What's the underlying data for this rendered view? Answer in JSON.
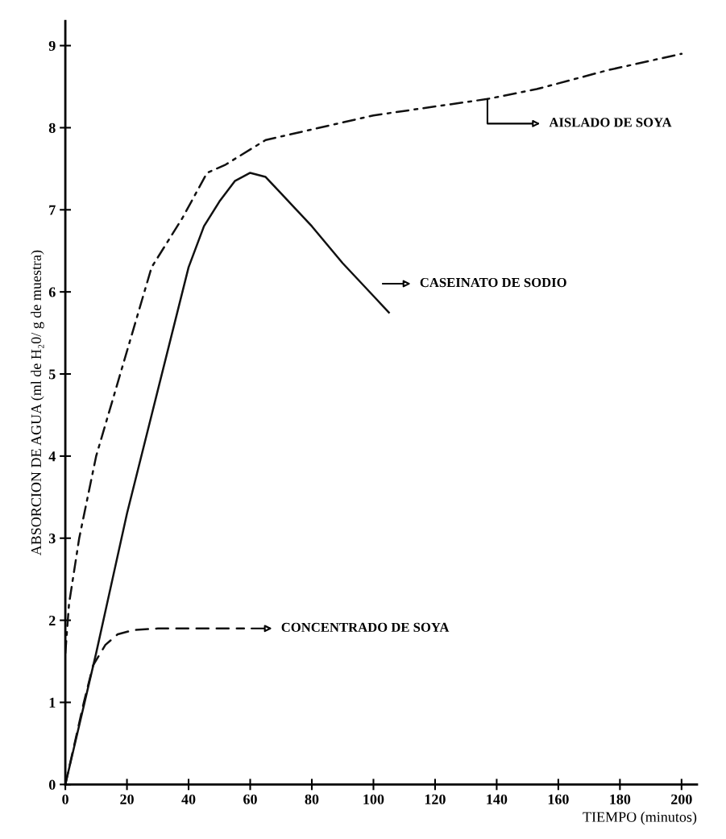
{
  "chart_data": {
    "type": "line",
    "xlabel": "TIEMPO (minutos)",
    "ylabel": "ABSORCION DE AGUA (ml de H₂0/ g de muestra)",
    "xlim": [
      0,
      205
    ],
    "ylim": [
      0,
      9.3
    ],
    "xticks": [
      0,
      20,
      40,
      60,
      80,
      100,
      120,
      140,
      160,
      180,
      200
    ],
    "yticks": [
      0,
      1,
      2,
      3,
      4,
      5,
      6,
      7,
      8,
      9
    ],
    "grid": false,
    "legend": false,
    "marker": "none",
    "series": [
      {
        "name": "AISLADO DE SOYA",
        "color": "#111111",
        "line_style": "dashdot",
        "x": [
          0,
          1.2,
          4.5,
          10,
          28,
          38,
          46,
          52,
          65,
          100,
          137,
          153,
          176,
          200
        ],
        "values": [
          1.6,
          2.2,
          3.0,
          4.0,
          6.3,
          6.9,
          7.45,
          7.55,
          7.85,
          8.15,
          8.35,
          8.47,
          8.7,
          8.9
        ]
      },
      {
        "name": "CASEINATO DE SODIO",
        "color": "#111111",
        "line_style": "solid",
        "x": [
          0,
          10,
          20,
          30,
          40,
          45,
          50,
          55,
          60,
          65,
          70,
          80,
          90,
          100,
          105
        ],
        "values": [
          0,
          1.6,
          3.3,
          4.8,
          6.3,
          6.8,
          7.1,
          7.35,
          7.45,
          7.4,
          7.2,
          6.8,
          6.35,
          5.95,
          5.75
        ]
      },
      {
        "name": "CONCENTRADO DE SOYA",
        "color": "#111111",
        "line_style": "dashed",
        "x": [
          0,
          3,
          6,
          9,
          13,
          17,
          22,
          30,
          58
        ],
        "values": [
          0,
          0.5,
          1.0,
          1.45,
          1.7,
          1.83,
          1.88,
          1.9,
          1.9
        ]
      }
    ]
  }
}
